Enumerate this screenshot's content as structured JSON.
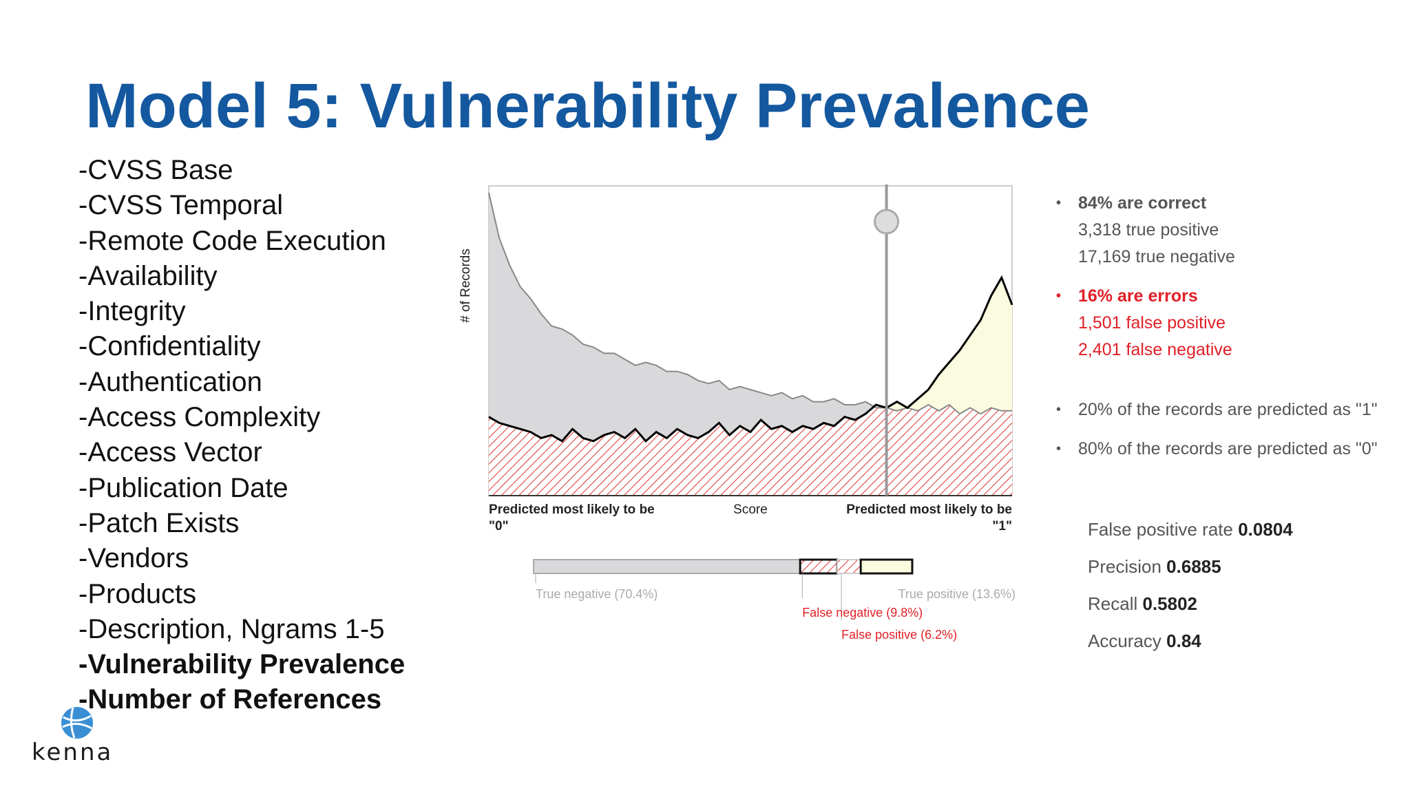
{
  "title": "Model 5: Vulnerability Prevalence",
  "features": [
    {
      "label": "-CVSS Base",
      "bold": false
    },
    {
      "label": "-CVSS Temporal",
      "bold": false
    },
    {
      "label": "-Remote Code Execution",
      "bold": false
    },
    {
      "label": "-Availability",
      "bold": false
    },
    {
      "label": "-Integrity",
      "bold": false
    },
    {
      "label": "-Confidentiality",
      "bold": false
    },
    {
      "label": "-Authentication",
      "bold": false
    },
    {
      "label": "-Access Complexity",
      "bold": false
    },
    {
      "label": "-Access Vector",
      "bold": false
    },
    {
      "label": "-Publication Date",
      "bold": false
    },
    {
      "label": "-Patch Exists",
      "bold": false
    },
    {
      "label": "-Vendors",
      "bold": false
    },
    {
      "label": "-Products",
      "bold": false
    },
    {
      "label": "-Description, Ngrams 1-5",
      "bold": false
    },
    {
      "label": "-Vulnerability Prevalence",
      "bold": true
    },
    {
      "label": "-Number of References",
      "bold": true
    }
  ],
  "logo_text": "kenna",
  "stats": {
    "correct_head": "84% are correct",
    "true_positive": "3,318 true positive",
    "true_negative": "17,169 true negative",
    "errors_head": "16% are errors",
    "false_positive": "1,501 false positive",
    "false_negative": "2,401 false negative",
    "pred1": "20% of the records are predicted as \"1\"",
    "pred0": "80% of the records are predicted as \"0\""
  },
  "metrics": [
    {
      "label": "False positive rate",
      "value": "0.0804"
    },
    {
      "label": "Precision",
      "value": "0.6885"
    },
    {
      "label": "Recall",
      "value": "0.5802"
    },
    {
      "label": "Accuracy",
      "value": "0.84"
    }
  ],
  "colors": {
    "title": "#14589f",
    "error_red": "#e01f26",
    "negative_fill": "#d9d9dc",
    "positive_fill": "#fbfbe0",
    "hatch": "#e03030"
  },
  "chart_data": {
    "type": "area",
    "ylabel": "# of Records",
    "xlabel": "Score",
    "x_left_label": [
      "Predicted most likely to be",
      "\"0\""
    ],
    "x_right_label": [
      "Predicted most likely to be",
      "\"1\""
    ],
    "x": [
      0,
      0.02,
      0.04,
      0.06,
      0.08,
      0.1,
      0.12,
      0.14,
      0.16,
      0.18,
      0.2,
      0.22,
      0.24,
      0.26,
      0.28,
      0.3,
      0.32,
      0.34,
      0.36,
      0.38,
      0.4,
      0.42,
      0.44,
      0.46,
      0.48,
      0.5,
      0.52,
      0.54,
      0.56,
      0.58,
      0.6,
      0.62,
      0.64,
      0.66,
      0.68,
      0.7,
      0.72,
      0.74,
      0.76,
      0.78,
      0.8,
      0.82,
      0.84,
      0.86,
      0.88,
      0.9,
      0.92,
      0.94,
      0.96,
      0.98,
      1.0
    ],
    "series": [
      {
        "values": [
          100,
          85,
          76,
          69,
          65,
          60,
          56,
          55,
          53,
          50,
          49,
          47,
          47,
          45,
          43,
          44,
          43,
          41,
          41,
          40,
          38,
          37,
          38,
          35,
          36,
          35,
          34,
          33,
          34,
          32,
          33,
          31,
          31,
          32,
          30,
          30,
          31,
          29,
          29,
          28,
          29,
          28,
          30,
          28,
          30,
          27,
          29,
          27,
          29,
          28,
          28
        ]
      },
      {
        "values": [
          26,
          24,
          23,
          22,
          21,
          19,
          20,
          18,
          22,
          19,
          18,
          20,
          21,
          19,
          22,
          18,
          21,
          19,
          22,
          20,
          19,
          21,
          24,
          20,
          23,
          21,
          25,
          22,
          23,
          21,
          23,
          22,
          24,
          23,
          26,
          25,
          27,
          30,
          29,
          31,
          29,
          32,
          35,
          40,
          44,
          48,
          53,
          58,
          66,
          72,
          63
        ]
      }
    ],
    "threshold": 0.76,
    "ylim": [
      0,
      100
    ],
    "bar": {
      "segments": [
        {
          "name": "True negative",
          "percent": 70.4,
          "label": "True negative (70.4%)"
        },
        {
          "name": "False negative",
          "percent": 9.8,
          "label": "False negative (9.8%)"
        },
        {
          "name": "False positive",
          "percent": 6.2,
          "label": "False positive (6.2%)"
        },
        {
          "name": "True positive",
          "percent": 13.6,
          "label": "True positive (13.6%)"
        }
      ]
    }
  }
}
